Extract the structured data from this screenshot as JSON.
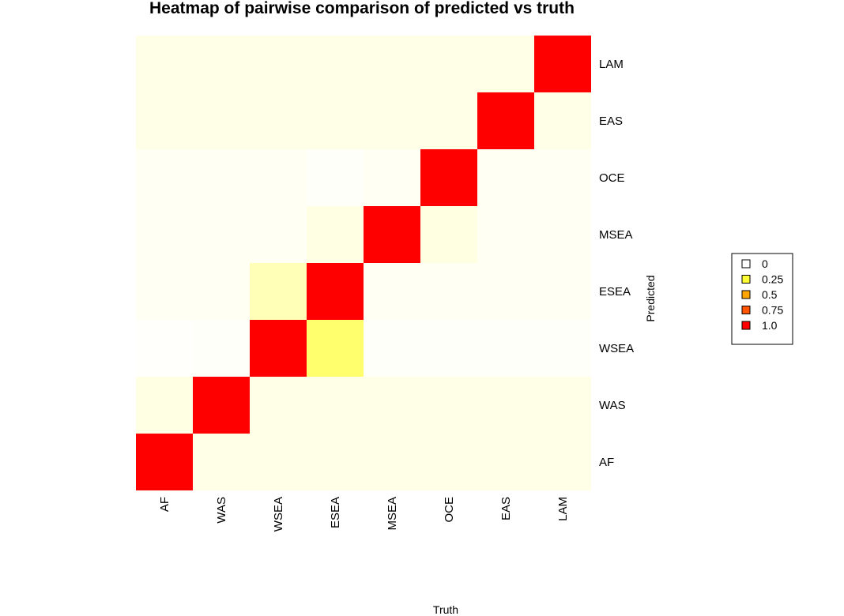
{
  "chart_data": {
    "type": "heatmap",
    "title": "Heatmap of pairwise comparison of predicted vs truth",
    "xlabel": "Truth",
    "ylabel": "Predicted",
    "x_categories": [
      "AF",
      "WAS",
      "WSEA",
      "ESEA",
      "MSEA",
      "OCE",
      "EAS",
      "LAM"
    ],
    "y_categories": [
      "AF",
      "WAS",
      "WSEA",
      "ESEA",
      "MSEA",
      "OCE",
      "EAS",
      "LAM"
    ],
    "values": [
      [
        1.0,
        0.02,
        0.02,
        0.02,
        0.02,
        0.02,
        0.02,
        0.02
      ],
      [
        0.03,
        1.0,
        0.02,
        0.02,
        0.02,
        0.02,
        0.02,
        0.02
      ],
      [
        0.0,
        0.005,
        1.0,
        0.35,
        0.005,
        0.005,
        0.005,
        0.005
      ],
      [
        0.01,
        0.01,
        0.15,
        1.0,
        0.01,
        0.01,
        0.01,
        0.01
      ],
      [
        0.01,
        0.01,
        0.01,
        0.03,
        1.0,
        0.04,
        0.01,
        0.01
      ],
      [
        0.01,
        0.01,
        0.01,
        0.005,
        0.01,
        1.0,
        0.01,
        0.01
      ],
      [
        0.02,
        0.02,
        0.02,
        0.02,
        0.02,
        0.02,
        1.0,
        0.02
      ],
      [
        0.02,
        0.02,
        0.02,
        0.02,
        0.02,
        0.02,
        0.02,
        1.0
      ]
    ],
    "color_scale": [
      "#ffffff",
      "#ffff33",
      "#ffa500",
      "#ff5500",
      "#ff0000"
    ],
    "legend": {
      "position": "right",
      "entries": [
        {
          "label": "0",
          "color": "#ffffff"
        },
        {
          "label": "0.25",
          "color": "#ffff33"
        },
        {
          "label": "0.5",
          "color": "#ffa500"
        },
        {
          "label": "0.75",
          "color": "#ff5500"
        },
        {
          "label": "1.0",
          "color": "#ff0000"
        }
      ]
    }
  }
}
